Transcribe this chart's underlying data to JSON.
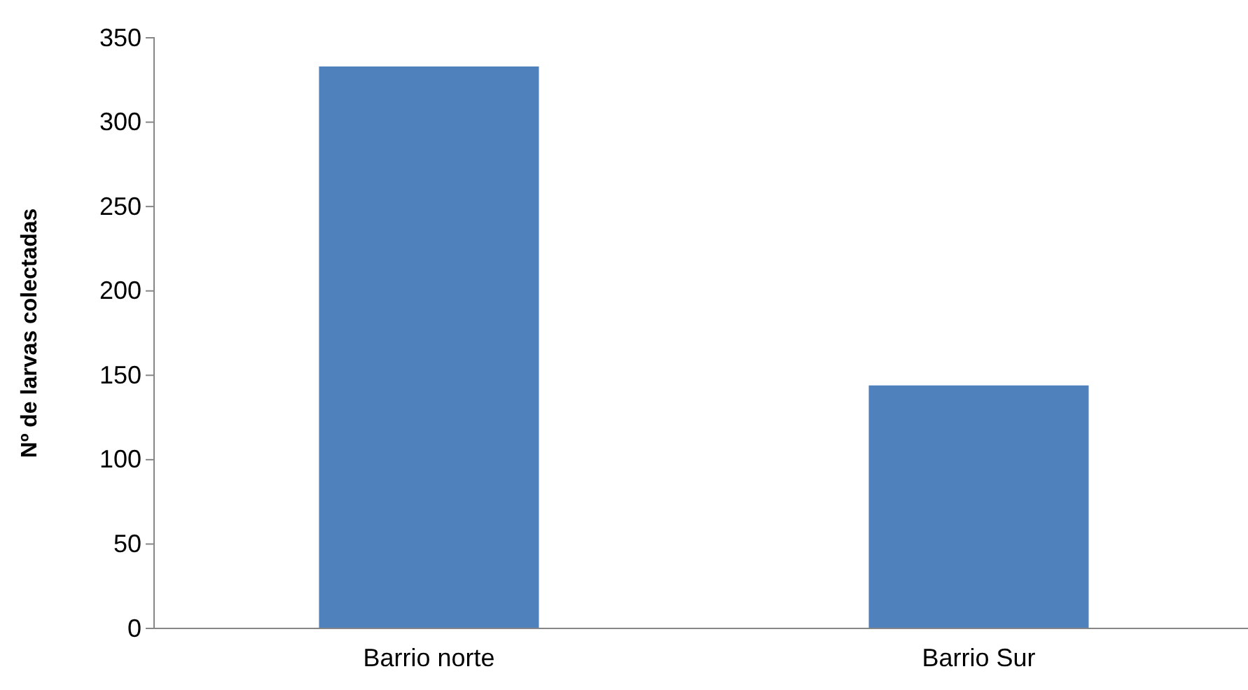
{
  "chart_data": {
    "type": "bar",
    "ylabel": "Nº de larvas colectadas",
    "categories": [
      "Barrio norte",
      "Barrio Sur"
    ],
    "values": [
      333,
      144
    ],
    "color": "#4f81bd",
    "ylim": [
      0,
      350
    ],
    "yticks": [
      0,
      50,
      100,
      150,
      200,
      250,
      300,
      350
    ]
  }
}
